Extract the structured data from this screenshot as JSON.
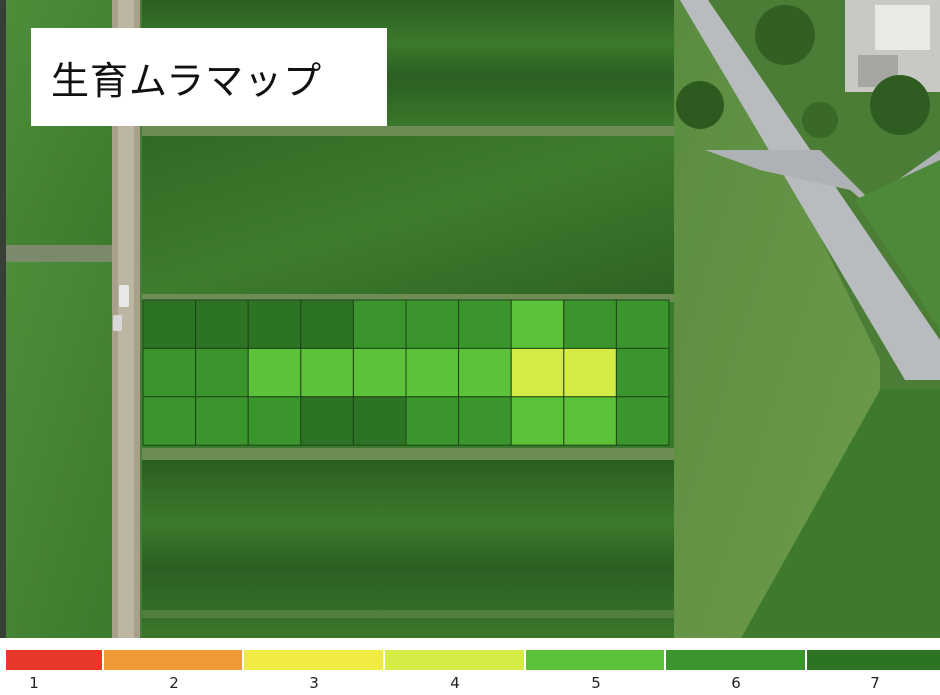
{
  "title": "生育ムラマップ",
  "legend": {
    "labels": [
      "1",
      "2",
      "3",
      "4",
      "5",
      "6",
      "7"
    ],
    "colors": [
      "#e8382b",
      "#ee9a37",
      "#f0ec45",
      "#d4ec45",
      "#5cc23a",
      "#3a952c",
      "#2c7424"
    ]
  },
  "chart_data": {
    "type": "heatmap",
    "rows": 3,
    "cols": 10,
    "values": [
      [
        7,
        7,
        7,
        7,
        6,
        6,
        6,
        5,
        6,
        6
      ],
      [
        6,
        6,
        5,
        5,
        5,
        5,
        5,
        4,
        4,
        6
      ],
      [
        6,
        6,
        6,
        7,
        7,
        6,
        6,
        5,
        5,
        6
      ]
    ],
    "legend_values": [
      1,
      2,
      3,
      4,
      5,
      6,
      7
    ]
  }
}
